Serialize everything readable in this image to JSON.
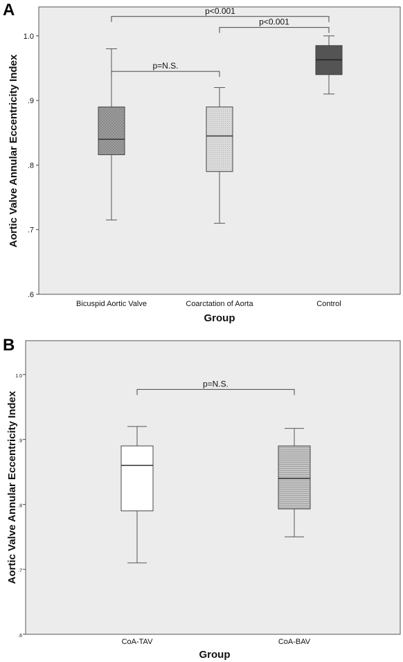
{
  "chart_data": [
    {
      "panel_label": "A",
      "type": "box",
      "xlabel": "Group",
      "ylabel": "Aortic Valve Annular Eccentricity Index",
      "ylim": [
        0.6,
        1.05
      ],
      "yticks": [
        ".6",
        ".7",
        ".8",
        ".9",
        "1.0"
      ],
      "ytick_values": [
        0.6,
        0.7,
        0.8,
        0.9,
        1.0
      ],
      "grid": false,
      "categories": [
        "Bicuspid Aortic Valve",
        "Coarctation of Aorta",
        "Control"
      ],
      "boxes": [
        {
          "min": 0.715,
          "q1": 0.816,
          "median": 0.84,
          "q3": 0.89,
          "max": 0.98,
          "fill": "#a9a9a9",
          "pattern": "crosshatch"
        },
        {
          "min": 0.71,
          "q1": 0.79,
          "median": 0.845,
          "q3": 0.89,
          "max": 0.92,
          "fill": "#d7d7d7",
          "pattern": "dots"
        },
        {
          "min": 0.91,
          "q1": 0.94,
          "median": 0.963,
          "q3": 0.985,
          "max": 1.0,
          "fill": "#545454",
          "pattern": "solid"
        }
      ],
      "annotations": [
        {
          "text": "p<0.001",
          "from": 0,
          "to": 2,
          "level": 1.03
        },
        {
          "text": "p<0.001",
          "from": 1,
          "to": 2,
          "level": 1.013
        },
        {
          "text": "p=N.S.",
          "from": 0,
          "to": 1,
          "level": 0.945
        }
      ]
    },
    {
      "panel_label": "B",
      "type": "box",
      "xlabel": "Group",
      "ylabel": "Aortic Valve Annular Eccentricity Index",
      "ylim": [
        0.6,
        1.05
      ],
      "yticks": [
        ".6",
        ".7",
        ".8",
        ".9",
        "1.0"
      ],
      "ytick_values": [
        0.6,
        0.7,
        0.8,
        0.9,
        1.0
      ],
      "grid": false,
      "categories": [
        "CoA-TAV",
        "CoA-BAV"
      ],
      "boxes": [
        {
          "min": 0.71,
          "q1": 0.79,
          "median": 0.86,
          "q3": 0.89,
          "max": 0.92,
          "fill": "#ffffff",
          "pattern": "solid"
        },
        {
          "min": 0.75,
          "q1": 0.793,
          "median": 0.84,
          "q3": 0.89,
          "max": 0.917,
          "fill": "#bdbdbd",
          "pattern": "lines"
        }
      ],
      "annotations": [
        {
          "text": "p=N.S.",
          "from": 0,
          "to": 1,
          "level": 0.977
        }
      ]
    }
  ],
  "colors": {
    "plot_background": "#ececec",
    "axis": "#444444",
    "whisker": "#555555"
  }
}
